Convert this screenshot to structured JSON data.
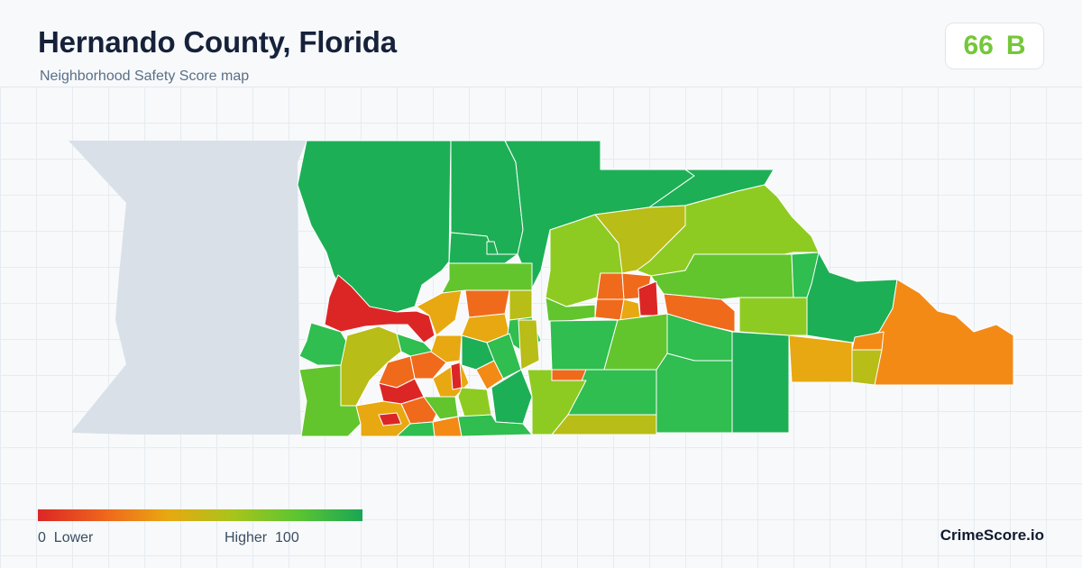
{
  "header": {
    "title": "Hernando County, Florida",
    "subtitle": "Neighborhood Safety Score map"
  },
  "score": {
    "value": "66",
    "grade": "B",
    "color": "#74c73a"
  },
  "legend": {
    "low_number": "0",
    "low_label": "Lower",
    "high_label": "Higher",
    "high_number": "100",
    "gradient": [
      "#dc2626",
      "#f06a1c",
      "#e8a811",
      "#a9c41c",
      "#5cc531",
      "#1aa655"
    ]
  },
  "brand": "CrimeScore.io",
  "map": {
    "water_color": "#d9e0e8",
    "boundary_color": "#ffffff",
    "color_scale": {
      "red": "#dc2626",
      "orange": "#f38a16",
      "amber": "#e8a811",
      "olive": "#b8bd17",
      "lime": "#8ecb22",
      "light_green": "#62c52d",
      "green": "#2fbe4f",
      "dark_green": "#1daf55"
    }
  }
}
